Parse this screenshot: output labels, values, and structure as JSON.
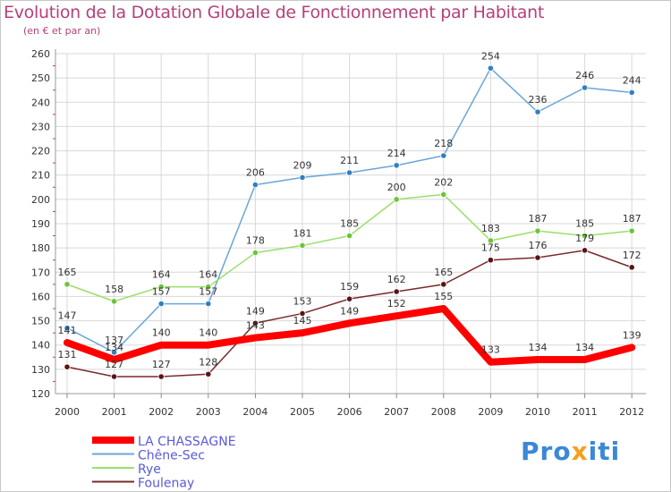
{
  "header": {
    "title": "Evolution de la Dotation Globale de Fonctionnement par Habitant",
    "subtitle": "(en € et par an)"
  },
  "logo": {
    "text_pro": "Pro",
    "text_x": "x",
    "text_iti": "iti"
  },
  "chart_data": {
    "type": "line",
    "title": "Evolution de la Dotation Globale de Fonctionnement par Habitant",
    "subtitle": "(en € et par an)",
    "xlabel": "",
    "ylabel": "",
    "ylim": [
      120,
      260
    ],
    "yticks": [
      120,
      130,
      140,
      150,
      160,
      170,
      180,
      190,
      200,
      210,
      220,
      230,
      240,
      250,
      260
    ],
    "categories": [
      "2000",
      "2001",
      "2002",
      "2003",
      "2004",
      "2005",
      "2006",
      "2007",
      "2008",
      "2009",
      "2010",
      "2011",
      "2012"
    ],
    "grid": true,
    "legend_position": "bottom-left",
    "series": [
      {
        "name": "Chêne-Sec",
        "color": "#6aa6d8",
        "marker": "#2f7fc4",
        "values": [
          147,
          137,
          157,
          157,
          206,
          209,
          211,
          214,
          218,
          254,
          236,
          246,
          244
        ]
      },
      {
        "name": "Rye",
        "color": "#9ade6a",
        "marker": "#6cc43a",
        "values": [
          165,
          158,
          164,
          164,
          178,
          181,
          185,
          200,
          202,
          183,
          187,
          185,
          187
        ]
      },
      {
        "name": "Foulenay",
        "color": "#7a2a2a",
        "marker": "#5a1414",
        "values": [
          131,
          127,
          127,
          128,
          149,
          153,
          159,
          162,
          165,
          175,
          176,
          179,
          172
        ]
      },
      {
        "name": "LA CHASSAGNE",
        "color": "#ff0000",
        "marker": "#ff0000",
        "thick": true,
        "values": [
          141,
          134,
          140,
          140,
          143,
          145,
          149,
          152,
          155,
          133,
          134,
          134,
          139
        ]
      }
    ],
    "legend_order": [
      "LA CHASSAGNE",
      "Chêne-Sec",
      "Rye",
      "Foulenay"
    ]
  }
}
